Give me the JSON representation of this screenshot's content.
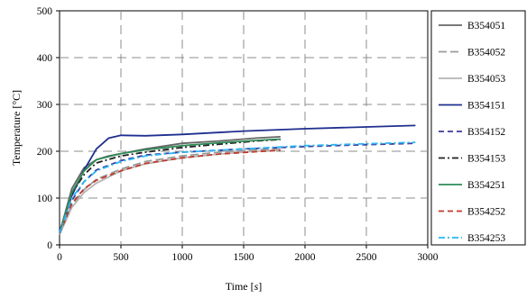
{
  "chart_data": {
    "type": "line",
    "xlabel": "Time [s]",
    "ylabel": "Temperature [°C]",
    "xlim": [
      0,
      3000
    ],
    "ylim": [
      0,
      500
    ],
    "x_ticks": [
      "0",
      "500",
      "1000",
      "1500",
      "2000",
      "2500",
      "3000"
    ],
    "y_ticks": [
      "0",
      "100",
      "200",
      "300",
      "400",
      "500"
    ],
    "grid": true,
    "legend_position": "right",
    "series": [
      {
        "name": "B354051",
        "color": "#666666",
        "dash": "solid",
        "points": [
          [
            0,
            25
          ],
          [
            100,
            120
          ],
          [
            200,
            165
          ],
          [
            300,
            182
          ],
          [
            400,
            190
          ],
          [
            500,
            195
          ],
          [
            700,
            205
          ],
          [
            1000,
            217
          ],
          [
            1300,
            222
          ],
          [
            1600,
            228
          ],
          [
            1800,
            231
          ]
        ]
      },
      {
        "name": "B354052",
        "color": "#9a9a9a",
        "dash": "long",
        "points": [
          [
            0,
            25
          ],
          [
            100,
            85
          ],
          [
            200,
            118
          ],
          [
            300,
            140
          ],
          [
            500,
            162
          ],
          [
            700,
            178
          ],
          [
            1000,
            190
          ],
          [
            1300,
            198
          ],
          [
            1600,
            203
          ],
          [
            1800,
            205
          ]
        ]
      },
      {
        "name": "B354053",
        "color": "#b5b5b5",
        "dash": "solid",
        "points": [
          [
            0,
            22
          ],
          [
            100,
            80
          ],
          [
            200,
            112
          ],
          [
            300,
            132
          ],
          [
            500,
            158
          ],
          [
            700,
            173
          ],
          [
            1000,
            186
          ],
          [
            1300,
            194
          ],
          [
            1600,
            200
          ],
          [
            1800,
            203
          ]
        ]
      },
      {
        "name": "B354151",
        "color": "#1f2f8f",
        "dash": "solid",
        "points": [
          [
            0,
            28
          ],
          [
            100,
            105
          ],
          [
            200,
            160
          ],
          [
            300,
            205
          ],
          [
            400,
            228
          ],
          [
            500,
            234
          ],
          [
            700,
            233
          ],
          [
            1000,
            236
          ],
          [
            1500,
            243
          ],
          [
            2000,
            248
          ],
          [
            2500,
            252
          ],
          [
            2900,
            255
          ]
        ]
      },
      {
        "name": "B354152",
        "color": "#3b3b9f",
        "dash": "dash",
        "points": [
          [
            0,
            25
          ],
          [
            100,
            95
          ],
          [
            200,
            135
          ],
          [
            300,
            160
          ],
          [
            500,
            180
          ],
          [
            700,
            192
          ],
          [
            1000,
            198
          ],
          [
            1500,
            205
          ],
          [
            2000,
            210
          ],
          [
            2500,
            214
          ],
          [
            2900,
            217
          ]
        ]
      },
      {
        "name": "B354153",
        "color": "#222222",
        "dash": "dashdot",
        "points": [
          [
            0,
            25
          ],
          [
            100,
            110
          ],
          [
            200,
            150
          ],
          [
            300,
            175
          ],
          [
            500,
            190
          ],
          [
            700,
            198
          ],
          [
            1000,
            208
          ],
          [
            1300,
            215
          ],
          [
            1600,
            222
          ],
          [
            1800,
            225
          ]
        ]
      },
      {
        "name": "B354251",
        "color": "#2e8b57",
        "dash": "solid",
        "points": [
          [
            0,
            26
          ],
          [
            100,
            112
          ],
          [
            200,
            158
          ],
          [
            300,
            182
          ],
          [
            500,
            195
          ],
          [
            700,
            203
          ],
          [
            1000,
            212
          ],
          [
            1300,
            218
          ],
          [
            1600,
            223
          ],
          [
            1800,
            226
          ]
        ]
      },
      {
        "name": "B354252",
        "color": "#c0392b",
        "dash": "dash",
        "points": [
          [
            0,
            24
          ],
          [
            100,
            88
          ],
          [
            200,
            120
          ],
          [
            300,
            138
          ],
          [
            500,
            158
          ],
          [
            700,
            174
          ],
          [
            1000,
            186
          ],
          [
            1300,
            194
          ],
          [
            1600,
            199
          ],
          [
            1800,
            202
          ]
        ]
      },
      {
        "name": "B354253",
        "color": "#29b6f6",
        "dash": "dashdot",
        "points": [
          [
            0,
            25
          ],
          [
            100,
            100
          ],
          [
            200,
            135
          ],
          [
            300,
            158
          ],
          [
            500,
            178
          ],
          [
            700,
            190
          ],
          [
            1000,
            198
          ],
          [
            1500,
            205
          ],
          [
            2000,
            212
          ],
          [
            2500,
            216
          ],
          [
            2900,
            219
          ]
        ]
      }
    ]
  }
}
